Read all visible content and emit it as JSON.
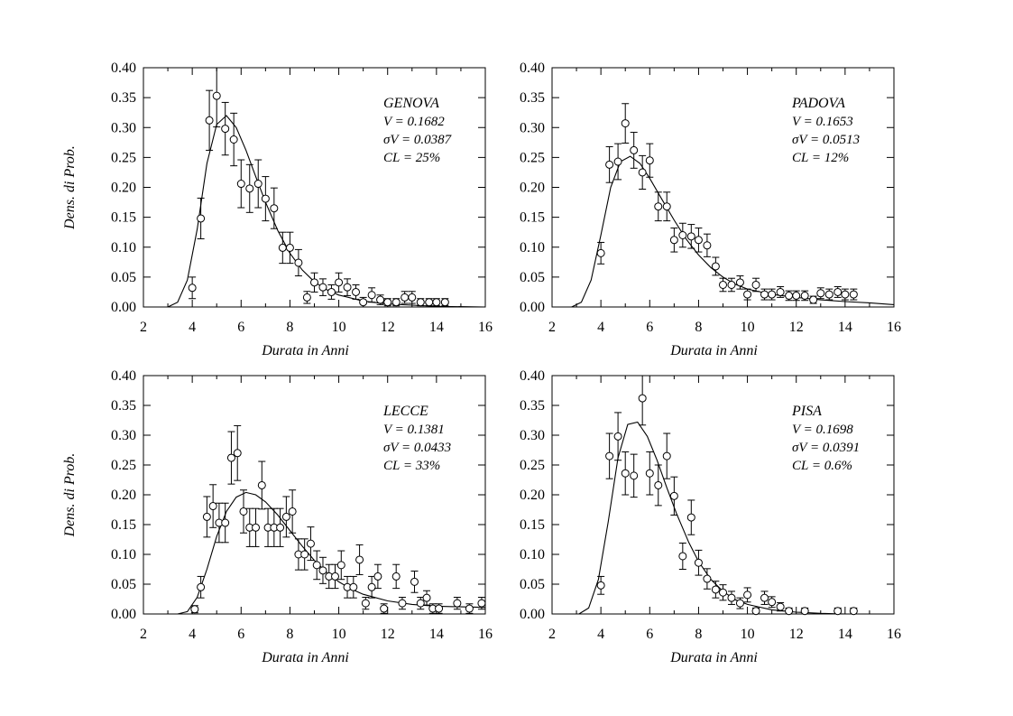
{
  "chart_data": [
    {
      "type": "scatter",
      "city": "GENOVA",
      "xlabel": "Durata in Anni",
      "ylabel": "Dens. di Prob.",
      "xlim": [
        2,
        16
      ],
      "ylim": [
        0,
        0.4
      ],
      "xticks": [
        "2",
        "4",
        "6",
        "8",
        "10",
        "12",
        "14",
        "16"
      ],
      "yticks": [
        "0.00",
        "0.05",
        "0.10",
        "0.15",
        "0.20",
        "0.25",
        "0.30",
        "0.35",
        "0.40"
      ],
      "annotations": [
        "V = 0.1682",
        "σV = 0.0387",
        "CL = 25%"
      ],
      "points": [
        {
          "x": 4.0,
          "y": 0.032,
          "err": 0.018
        },
        {
          "x": 4.35,
          "y": 0.148,
          "err": 0.034
        },
        {
          "x": 4.7,
          "y": 0.312,
          "err": 0.05
        },
        {
          "x": 5.0,
          "y": 0.353,
          "err": 0.052
        },
        {
          "x": 5.35,
          "y": 0.298,
          "err": 0.044
        },
        {
          "x": 5.7,
          "y": 0.28,
          "err": 0.044
        },
        {
          "x": 6.0,
          "y": 0.206,
          "err": 0.04
        },
        {
          "x": 6.35,
          "y": 0.198,
          "err": 0.04
        },
        {
          "x": 6.7,
          "y": 0.206,
          "err": 0.04
        },
        {
          "x": 7.0,
          "y": 0.181,
          "err": 0.037
        },
        {
          "x": 7.35,
          "y": 0.165,
          "err": 0.034
        },
        {
          "x": 7.7,
          "y": 0.099,
          "err": 0.026
        },
        {
          "x": 8.0,
          "y": 0.099,
          "err": 0.026
        },
        {
          "x": 8.35,
          "y": 0.074,
          "err": 0.022
        },
        {
          "x": 8.7,
          "y": 0.016,
          "err": 0.01
        },
        {
          "x": 9.0,
          "y": 0.041,
          "err": 0.016
        },
        {
          "x": 9.35,
          "y": 0.033,
          "err": 0.014
        },
        {
          "x": 9.7,
          "y": 0.025,
          "err": 0.012
        },
        {
          "x": 10.0,
          "y": 0.041,
          "err": 0.016
        },
        {
          "x": 10.35,
          "y": 0.033,
          "err": 0.014
        },
        {
          "x": 10.7,
          "y": 0.025,
          "err": 0.012
        },
        {
          "x": 11.0,
          "y": 0.008,
          "err": 0.008
        },
        {
          "x": 11.35,
          "y": 0.02,
          "err": 0.012
        },
        {
          "x": 11.7,
          "y": 0.012,
          "err": 0.008
        },
        {
          "x": 12.0,
          "y": 0.008,
          "err": 0.006
        },
        {
          "x": 12.35,
          "y": 0.008,
          "err": 0.006
        },
        {
          "x": 12.7,
          "y": 0.016,
          "err": 0.01
        },
        {
          "x": 13.0,
          "y": 0.016,
          "err": 0.01
        },
        {
          "x": 13.35,
          "y": 0.008,
          "err": 0.006
        },
        {
          "x": 13.7,
          "y": 0.008,
          "err": 0.006
        },
        {
          "x": 14.0,
          "y": 0.008,
          "err": 0.006
        },
        {
          "x": 14.35,
          "y": 0.008,
          "err": 0.006
        }
      ],
      "curve": [
        [
          3,
          0
        ],
        [
          3.4,
          0.008
        ],
        [
          3.8,
          0.045
        ],
        [
          4.2,
          0.13
        ],
        [
          4.6,
          0.24
        ],
        [
          5.0,
          0.305
        ],
        [
          5.4,
          0.32
        ],
        [
          5.8,
          0.3
        ],
        [
          6.2,
          0.262
        ],
        [
          6.6,
          0.218
        ],
        [
          7.0,
          0.175
        ],
        [
          7.5,
          0.128
        ],
        [
          8.0,
          0.09
        ],
        [
          8.5,
          0.062
        ],
        [
          9.0,
          0.042
        ],
        [
          9.5,
          0.029
        ],
        [
          10.0,
          0.02
        ],
        [
          11.0,
          0.01
        ],
        [
          12.0,
          0.005
        ],
        [
          13.0,
          0.003
        ],
        [
          14.0,
          0.001
        ],
        [
          16.0,
          0
        ]
      ]
    },
    {
      "type": "scatter",
      "city": "PADOVA",
      "xlabel": "Durata in Anni",
      "ylabel": "",
      "xlim": [
        2,
        16
      ],
      "ylim": [
        0,
        0.4
      ],
      "xticks": [
        "2",
        "4",
        "6",
        "8",
        "10",
        "12",
        "14",
        "16"
      ],
      "yticks": [
        "0.00",
        "0.05",
        "0.10",
        "0.15",
        "0.20",
        "0.25",
        "0.30",
        "0.35",
        "0.40"
      ],
      "annotations": [
        "V = 0.1653",
        "σV = 0.0513",
        "CL = 12%"
      ],
      "points": [
        {
          "x": 4.0,
          "y": 0.09,
          "err": 0.018
        },
        {
          "x": 4.35,
          "y": 0.238,
          "err": 0.03
        },
        {
          "x": 4.7,
          "y": 0.243,
          "err": 0.03
        },
        {
          "x": 5.0,
          "y": 0.307,
          "err": 0.033
        },
        {
          "x": 5.35,
          "y": 0.262,
          "err": 0.03
        },
        {
          "x": 5.7,
          "y": 0.225,
          "err": 0.028
        },
        {
          "x": 6.0,
          "y": 0.245,
          "err": 0.028
        },
        {
          "x": 6.35,
          "y": 0.168,
          "err": 0.024
        },
        {
          "x": 6.7,
          "y": 0.168,
          "err": 0.024
        },
        {
          "x": 7.0,
          "y": 0.112,
          "err": 0.02
        },
        {
          "x": 7.35,
          "y": 0.12,
          "err": 0.02
        },
        {
          "x": 7.7,
          "y": 0.118,
          "err": 0.02
        },
        {
          "x": 8.0,
          "y": 0.112,
          "err": 0.02
        },
        {
          "x": 8.35,
          "y": 0.103,
          "err": 0.019
        },
        {
          "x": 8.7,
          "y": 0.068,
          "err": 0.015
        },
        {
          "x": 9.0,
          "y": 0.037,
          "err": 0.011
        },
        {
          "x": 9.35,
          "y": 0.037,
          "err": 0.011
        },
        {
          "x": 9.7,
          "y": 0.041,
          "err": 0.011
        },
        {
          "x": 10.0,
          "y": 0.021,
          "err": 0.009
        },
        {
          "x": 10.35,
          "y": 0.037,
          "err": 0.011
        },
        {
          "x": 10.7,
          "y": 0.021,
          "err": 0.009
        },
        {
          "x": 11.0,
          "y": 0.021,
          "err": 0.009
        },
        {
          "x": 11.35,
          "y": 0.025,
          "err": 0.009
        },
        {
          "x": 11.7,
          "y": 0.019,
          "err": 0.008
        },
        {
          "x": 12.0,
          "y": 0.019,
          "err": 0.008
        },
        {
          "x": 12.35,
          "y": 0.019,
          "err": 0.008
        },
        {
          "x": 12.7,
          "y": 0.012,
          "err": 0.006
        },
        {
          "x": 13.0,
          "y": 0.023,
          "err": 0.009
        },
        {
          "x": 13.35,
          "y": 0.021,
          "err": 0.009
        },
        {
          "x": 13.7,
          "y": 0.025,
          "err": 0.009
        },
        {
          "x": 14.0,
          "y": 0.021,
          "err": 0.009
        },
        {
          "x": 14.35,
          "y": 0.021,
          "err": 0.009
        }
      ],
      "curve": [
        [
          2.8,
          0
        ],
        [
          3.2,
          0.008
        ],
        [
          3.6,
          0.045
        ],
        [
          4.0,
          0.12
        ],
        [
          4.4,
          0.2
        ],
        [
          4.8,
          0.243
        ],
        [
          5.2,
          0.252
        ],
        [
          5.6,
          0.24
        ],
        [
          6.0,
          0.215
        ],
        [
          6.5,
          0.18
        ],
        [
          7.0,
          0.145
        ],
        [
          7.5,
          0.113
        ],
        [
          8.0,
          0.087
        ],
        [
          8.5,
          0.066
        ],
        [
          9.0,
          0.05
        ],
        [
          9.5,
          0.038
        ],
        [
          10.0,
          0.03
        ],
        [
          11.0,
          0.021
        ],
        [
          12.0,
          0.016
        ],
        [
          13.0,
          0.012
        ],
        [
          14.0,
          0.009
        ],
        [
          15.0,
          0.007
        ],
        [
          16.0,
          0.004
        ]
      ]
    },
    {
      "type": "scatter",
      "city": "LECCE",
      "xlabel": "Durata in Anni",
      "ylabel": "Dens. di Prob.",
      "xlim": [
        2,
        16
      ],
      "ylim": [
        0,
        0.4
      ],
      "xticks": [
        "2",
        "4",
        "6",
        "8",
        "10",
        "12",
        "14",
        "16"
      ],
      "yticks": [
        "0.00",
        "0.05",
        "0.10",
        "0.15",
        "0.20",
        "0.25",
        "0.30",
        "0.35",
        "0.40"
      ],
      "annotations": [
        "V = 0.1381",
        "σV = 0.0433",
        "CL = 33%"
      ],
      "points": [
        {
          "x": 4.1,
          "y": 0.008,
          "err": 0.006
        },
        {
          "x": 4.35,
          "y": 0.045,
          "err": 0.018
        },
        {
          "x": 4.6,
          "y": 0.163,
          "err": 0.034
        },
        {
          "x": 4.85,
          "y": 0.181,
          "err": 0.036
        },
        {
          "x": 5.1,
          "y": 0.153,
          "err": 0.033
        },
        {
          "x": 5.35,
          "y": 0.153,
          "err": 0.033
        },
        {
          "x": 5.6,
          "y": 0.262,
          "err": 0.044
        },
        {
          "x": 5.85,
          "y": 0.27,
          "err": 0.046
        },
        {
          "x": 6.1,
          "y": 0.172,
          "err": 0.036
        },
        {
          "x": 6.35,
          "y": 0.145,
          "err": 0.032
        },
        {
          "x": 6.6,
          "y": 0.145,
          "err": 0.032
        },
        {
          "x": 6.85,
          "y": 0.216,
          "err": 0.04
        },
        {
          "x": 7.1,
          "y": 0.145,
          "err": 0.032
        },
        {
          "x": 7.35,
          "y": 0.145,
          "err": 0.032
        },
        {
          "x": 7.6,
          "y": 0.145,
          "err": 0.032
        },
        {
          "x": 7.85,
          "y": 0.163,
          "err": 0.034
        },
        {
          "x": 8.1,
          "y": 0.172,
          "err": 0.036
        },
        {
          "x": 8.35,
          "y": 0.1,
          "err": 0.026
        },
        {
          "x": 8.6,
          "y": 0.1,
          "err": 0.026
        },
        {
          "x": 8.85,
          "y": 0.118,
          "err": 0.028
        },
        {
          "x": 9.1,
          "y": 0.082,
          "err": 0.024
        },
        {
          "x": 9.35,
          "y": 0.073,
          "err": 0.022
        },
        {
          "x": 9.6,
          "y": 0.063,
          "err": 0.02
        },
        {
          "x": 9.85,
          "y": 0.063,
          "err": 0.02
        },
        {
          "x": 10.1,
          "y": 0.082,
          "err": 0.024
        },
        {
          "x": 10.35,
          "y": 0.045,
          "err": 0.018
        },
        {
          "x": 10.6,
          "y": 0.045,
          "err": 0.018
        },
        {
          "x": 10.85,
          "y": 0.091,
          "err": 0.025
        },
        {
          "x": 11.1,
          "y": 0.018,
          "err": 0.01
        },
        {
          "x": 11.35,
          "y": 0.045,
          "err": 0.018
        },
        {
          "x": 11.6,
          "y": 0.063,
          "err": 0.02
        },
        {
          "x": 11.85,
          "y": 0.009,
          "err": 0.008
        },
        {
          "x": 12.35,
          "y": 0.063,
          "err": 0.02
        },
        {
          "x": 12.6,
          "y": 0.018,
          "err": 0.01
        },
        {
          "x": 13.1,
          "y": 0.054,
          "err": 0.018
        },
        {
          "x": 13.35,
          "y": 0.018,
          "err": 0.01
        },
        {
          "x": 13.6,
          "y": 0.027,
          "err": 0.012
        },
        {
          "x": 13.85,
          "y": 0.009,
          "err": 0.008
        },
        {
          "x": 14.1,
          "y": 0.009,
          "err": 0.008
        },
        {
          "x": 14.85,
          "y": 0.018,
          "err": 0.01
        },
        {
          "x": 15.35,
          "y": 0.009,
          "err": 0.008
        },
        {
          "x": 15.85,
          "y": 0.018,
          "err": 0.01
        }
      ],
      "curve": [
        [
          3.4,
          0
        ],
        [
          3.8,
          0.004
        ],
        [
          4.2,
          0.028
        ],
        [
          4.6,
          0.075
        ],
        [
          5.0,
          0.13
        ],
        [
          5.4,
          0.172
        ],
        [
          5.8,
          0.196
        ],
        [
          6.2,
          0.204
        ],
        [
          6.6,
          0.2
        ],
        [
          7.0,
          0.188
        ],
        [
          7.5,
          0.166
        ],
        [
          8.0,
          0.14
        ],
        [
          8.5,
          0.114
        ],
        [
          9.0,
          0.09
        ],
        [
          9.5,
          0.07
        ],
        [
          10.0,
          0.054
        ],
        [
          10.5,
          0.042
        ],
        [
          11.0,
          0.033
        ],
        [
          12.0,
          0.022
        ],
        [
          13.0,
          0.016
        ],
        [
          14.0,
          0.013
        ],
        [
          15.0,
          0.012
        ],
        [
          16.0,
          0.011
        ]
      ]
    },
    {
      "type": "scatter",
      "city": "PISA",
      "xlabel": "Durata in Anni",
      "ylabel": "",
      "xlim": [
        2,
        16
      ],
      "ylim": [
        0,
        0.4
      ],
      "xticks": [
        "2",
        "4",
        "6",
        "8",
        "10",
        "12",
        "14",
        "16"
      ],
      "yticks": [
        "0.00",
        "0.05",
        "0.10",
        "0.15",
        "0.20",
        "0.25",
        "0.30",
        "0.35",
        "0.40"
      ],
      "annotations": [
        "V = 0.1698",
        "σV = 0.0391",
        "CL = 0.6%"
      ],
      "points": [
        {
          "x": 4.0,
          "y": 0.048,
          "err": 0.015
        },
        {
          "x": 4.35,
          "y": 0.265,
          "err": 0.038
        },
        {
          "x": 4.7,
          "y": 0.298,
          "err": 0.04
        },
        {
          "x": 5.0,
          "y": 0.236,
          "err": 0.036
        },
        {
          "x": 5.35,
          "y": 0.232,
          "err": 0.036
        },
        {
          "x": 5.7,
          "y": 0.362,
          "err": 0.045
        },
        {
          "x": 6.0,
          "y": 0.236,
          "err": 0.036
        },
        {
          "x": 6.35,
          "y": 0.216,
          "err": 0.034
        },
        {
          "x": 6.7,
          "y": 0.265,
          "err": 0.038
        },
        {
          "x": 7.0,
          "y": 0.198,
          "err": 0.032
        },
        {
          "x": 7.35,
          "y": 0.097,
          "err": 0.022
        },
        {
          "x": 7.7,
          "y": 0.162,
          "err": 0.029
        },
        {
          "x": 8.0,
          "y": 0.086,
          "err": 0.021
        },
        {
          "x": 8.35,
          "y": 0.059,
          "err": 0.017
        },
        {
          "x": 8.7,
          "y": 0.041,
          "err": 0.014
        },
        {
          "x": 9.0,
          "y": 0.036,
          "err": 0.013
        },
        {
          "x": 9.35,
          "y": 0.027,
          "err": 0.011
        },
        {
          "x": 9.7,
          "y": 0.018,
          "err": 0.009
        },
        {
          "x": 10.0,
          "y": 0.032,
          "err": 0.012
        },
        {
          "x": 10.35,
          "y": 0.005,
          "err": 0.005
        },
        {
          "x": 10.7,
          "y": 0.027,
          "err": 0.011
        },
        {
          "x": 11.0,
          "y": 0.02,
          "err": 0.009
        },
        {
          "x": 11.35,
          "y": 0.012,
          "err": 0.007
        },
        {
          "x": 11.7,
          "y": 0.005,
          "err": 0.005
        },
        {
          "x": 12.35,
          "y": 0.005,
          "err": 0.005
        },
        {
          "x": 13.7,
          "y": 0.005,
          "err": 0.005
        },
        {
          "x": 14.35,
          "y": 0.005,
          "err": 0.005
        }
      ],
      "curve": [
        [
          3.1,
          0
        ],
        [
          3.5,
          0.01
        ],
        [
          3.9,
          0.058
        ],
        [
          4.3,
          0.155
        ],
        [
          4.7,
          0.262
        ],
        [
          5.1,
          0.318
        ],
        [
          5.5,
          0.322
        ],
        [
          5.9,
          0.298
        ],
        [
          6.3,
          0.258
        ],
        [
          6.7,
          0.212
        ],
        [
          7.1,
          0.168
        ],
        [
          7.6,
          0.12
        ],
        [
          8.0,
          0.088
        ],
        [
          8.5,
          0.058
        ],
        [
          9.0,
          0.038
        ],
        [
          9.5,
          0.024
        ],
        [
          10.0,
          0.016
        ],
        [
          11.0,
          0.007
        ],
        [
          12.0,
          0.003
        ],
        [
          13.0,
          0.001
        ],
        [
          14.0,
          0
        ],
        [
          16.0,
          0
        ]
      ]
    }
  ]
}
